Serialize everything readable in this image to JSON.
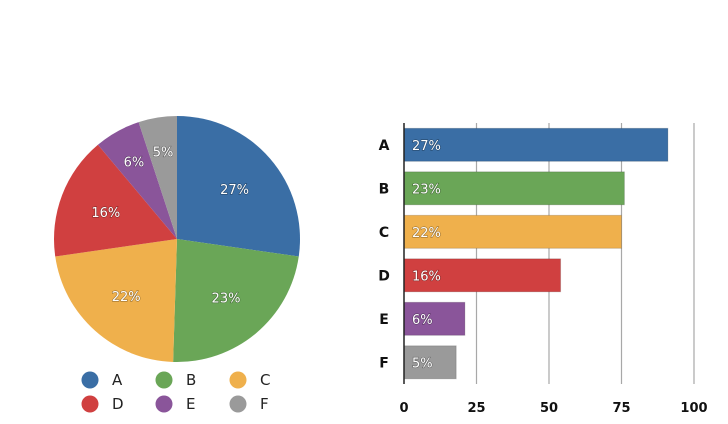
{
  "chart_data": [
    {
      "type": "pie",
      "categories": [
        "A",
        "B",
        "C",
        "D",
        "E",
        "F"
      ],
      "values": [
        27,
        23,
        22,
        16,
        6,
        5
      ],
      "labels": [
        "27%",
        "23%",
        "22%",
        "16%",
        "6%",
        "5%"
      ],
      "colors": [
        "#3a6ea5",
        "#6aa657",
        "#efb04c",
        "#d04040",
        "#8a559a",
        "#9a9a9a"
      ],
      "legend_position": "bottom"
    },
    {
      "type": "bar",
      "orientation": "horizontal",
      "categories": [
        "A",
        "B",
        "C",
        "D",
        "E",
        "F"
      ],
      "values": [
        91,
        76,
        75,
        54,
        21,
        18
      ],
      "labels": [
        "27%",
        "23%",
        "22%",
        "16%",
        "6%",
        "5%"
      ],
      "colors": [
        "#3a6ea5",
        "#6aa657",
        "#efb04c",
        "#d04040",
        "#8a559a",
        "#9a9a9a"
      ],
      "xlim": [
        0,
        100
      ],
      "xticks": [
        0,
        25,
        50,
        75,
        100
      ],
      "grid": true
    }
  ]
}
